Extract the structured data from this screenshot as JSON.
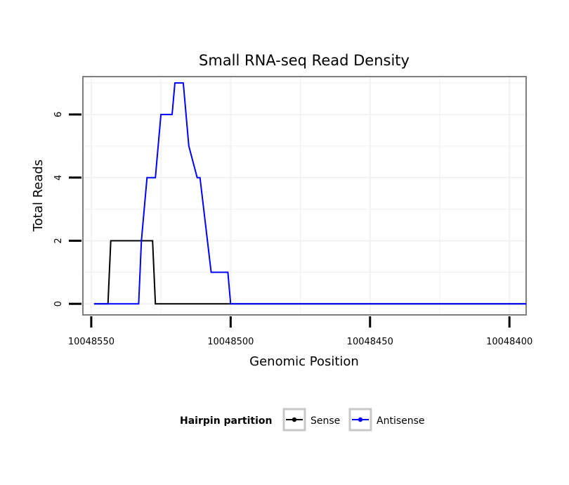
{
  "chart_data": {
    "type": "line",
    "title": "Small RNA-seq Read Density",
    "xlabel": "Genomic Position",
    "ylabel": "Total Reads",
    "xlim": [
      10048553,
      10048394
    ],
    "ylim": [
      -0.35,
      7.2
    ],
    "x_reversed": true,
    "x_ticks": [
      10048550,
      10048500,
      10048450,
      10048400
    ],
    "x_tick_labels": [
      "10048550",
      "10048500",
      "10048450",
      "10048400"
    ],
    "y_ticks": [
      0,
      2,
      4,
      6
    ],
    "y_tick_labels": [
      "0",
      "2",
      "4",
      "6"
    ],
    "grid": true,
    "legend": {
      "title": "Hairpin partition",
      "position": "bottom"
    },
    "series": [
      {
        "name": "Sense",
        "color": "#000000",
        "x": [
          10048549,
          10048544,
          10048543,
          10048531,
          10048530,
          10048528,
          10048527,
          10048394
        ],
        "y": [
          0,
          0,
          2,
          2,
          2,
          2,
          0,
          0
        ]
      },
      {
        "name": "Antisense",
        "color": "#0000ff",
        "x": [
          10048549,
          10048533,
          10048532,
          10048530,
          10048527,
          10048525,
          10048521,
          10048520,
          10048517,
          10048515,
          10048512,
          10048511,
          10048507,
          10048505,
          10048501,
          10048500,
          10048394
        ],
        "y": [
          0,
          0,
          2,
          4,
          4,
          6,
          6,
          7,
          7,
          5,
          4,
          4,
          1,
          1,
          1,
          0,
          0
        ]
      }
    ]
  }
}
